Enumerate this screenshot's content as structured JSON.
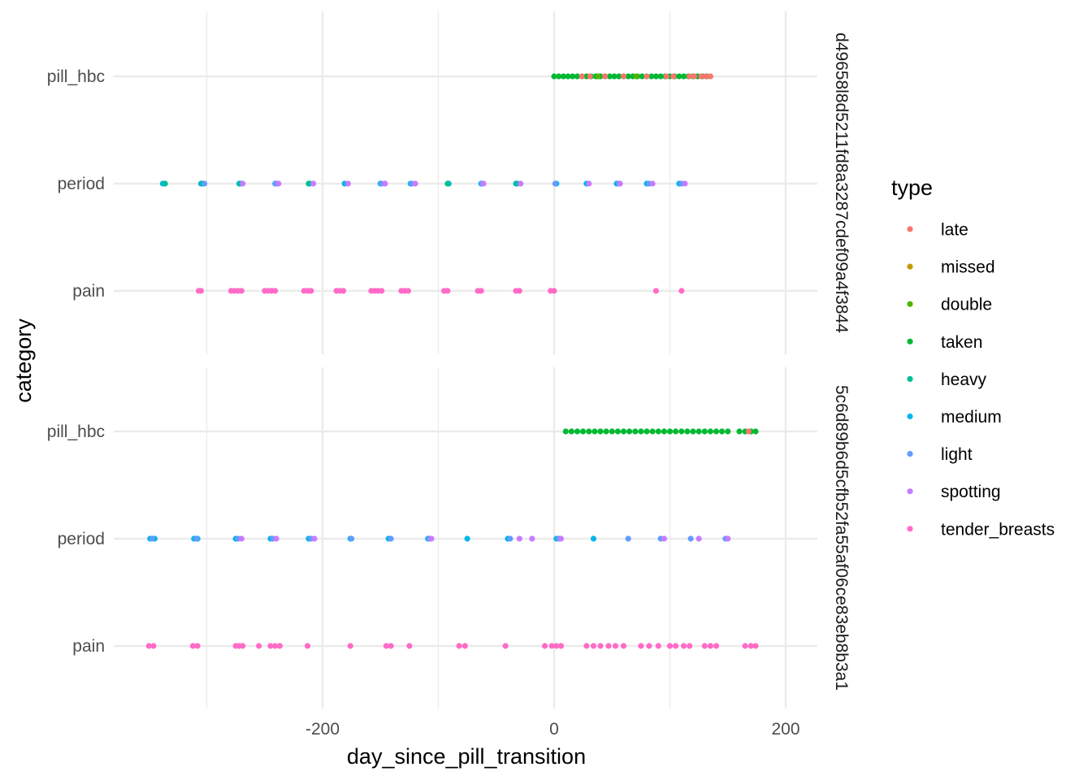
{
  "chart_data": {
    "type": "scatter",
    "xlabel": "day_since_pill_transition",
    "ylabel": "category",
    "xlim": [
      -378,
      227
    ],
    "x_ticks": [
      -200,
      0,
      200
    ],
    "x_tick_labels": [
      "-200",
      "0",
      "200"
    ],
    "categories": [
      "pill_hbc",
      "period",
      "pain"
    ],
    "grid": true,
    "legend": {
      "title": "type",
      "position": "right",
      "entries": [
        {
          "name": "late",
          "color": "#F8766D"
        },
        {
          "name": "missed",
          "color": "#C49A00"
        },
        {
          "name": "double",
          "color": "#53B400"
        },
        {
          "name": "taken",
          "color": "#00B931"
        },
        {
          "name": "heavy",
          "color": "#00C094"
        },
        {
          "name": "medium",
          "color": "#00B6EB"
        },
        {
          "name": "light",
          "color": "#619CFF"
        },
        {
          "name": "spotting",
          "color": "#C77CFF"
        },
        {
          "name": "tender_breasts",
          "color": "#FF6BC7"
        }
      ]
    },
    "panels": [
      {
        "strip": "d49658l8d5211fd8a3287cdef09a4f3844",
        "series": [
          {
            "name": "taken",
            "category": "pill_hbc",
            "x": [
              0,
              4,
              8,
              12,
              16,
              20,
              24,
              28,
              32,
              36,
              40,
              44,
              48,
              52,
              56,
              60,
              64,
              68,
              72,
              76,
              80,
              84,
              88,
              92,
              96,
              100,
              104,
              108,
              112,
              116,
              120,
              124,
              128,
              132
            ]
          },
          {
            "name": "late",
            "category": "pill_hbc",
            "x": [
              24,
              31,
              44,
              60,
              80,
              97,
              103,
              117,
              121,
              127,
              131,
              135
            ]
          },
          {
            "name": "double",
            "category": "pill_hbc",
            "x": [
              38,
              71
            ]
          },
          {
            "name": "medium",
            "category": "period",
            "x": [
              -338,
              -305,
              -272,
              -240,
              -211,
              -181,
              -150,
              -124,
              -91,
              -63,
              -33,
              2,
              28,
              54,
              80,
              108
            ]
          },
          {
            "name": "heavy",
            "category": "period",
            "x": [
              -336,
              -304,
              -271,
              -212,
              -92,
              -32
            ]
          },
          {
            "name": "light",
            "category": "period",
            "x": [
              -302,
              -241,
              -149,
              -123,
              -62,
              1,
              56,
              82,
              110
            ]
          },
          {
            "name": "spotting",
            "category": "period",
            "x": [
              -269,
              -238,
              -208,
              -178,
              -146,
              -120,
              -61,
              -29,
              30,
              57,
              85,
              113
            ]
          },
          {
            "name": "tender_breasts",
            "category": "pain",
            "x": [
              -307,
              -305,
              -279,
              -276,
              -273,
              -270,
              -250,
              -247,
              -244,
              -241,
              -216,
              -213,
              -210,
              -188,
              -185,
              -182,
              -158,
              -155,
              -152,
              -149,
              -132,
              -129,
              -126,
              -95,
              -92,
              -66,
              -63,
              -33,
              -30,
              -3,
              0,
              88,
              110
            ]
          }
        ]
      },
      {
        "strip": "5c6d89b6d5cfb52fa55af06ce83eb8b3a1",
        "series": [
          {
            "name": "taken",
            "category": "pill_hbc",
            "x": [
              10,
              15,
              20,
              25,
              30,
              35,
              40,
              45,
              50,
              55,
              60,
              65,
              70,
              75,
              80,
              85,
              90,
              95,
              100,
              105,
              110,
              115,
              120,
              125,
              130,
              135,
              140,
              145,
              150,
              160,
              165,
              170,
              174
            ]
          },
          {
            "name": "late",
            "category": "pill_hbc",
            "x": [
              168
            ]
          },
          {
            "name": "medium",
            "category": "period",
            "x": [
              -349,
              -345,
              -311,
              -308,
              -275,
              -245,
              -212,
              -176,
              -143,
              -109,
              -75,
              -40,
              2,
              34
            ]
          },
          {
            "name": "light",
            "category": "period",
            "x": [
              -347,
              -309,
              -273,
              -243,
              -210,
              -175,
              -141,
              -108,
              -38,
              4,
              64,
              92,
              118,
              148
            ]
          },
          {
            "name": "spotting",
            "category": "period",
            "x": [
              -270,
              -240,
              -207,
              -106,
              -30,
              -19,
              6,
              95,
              125,
              150
            ]
          },
          {
            "name": "tender_breasts",
            "category": "pain",
            "x": [
              -350,
              -346,
              -312,
              -308,
              -275,
              -272,
              -269,
              -255,
              -245,
              -241,
              -237,
              -213,
              -176,
              -145,
              -141,
              -125,
              -82,
              -77,
              -42,
              -8,
              -2,
              2,
              6,
              28,
              34,
              40,
              47,
              53,
              60,
              75,
              82,
              90,
              100,
              105,
              112,
              117,
              130,
              135,
              140,
              165,
              170,
              174
            ]
          }
        ]
      }
    ]
  }
}
